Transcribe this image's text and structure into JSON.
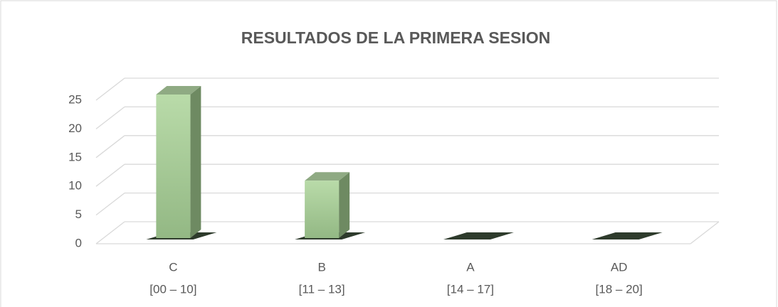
{
  "chart_data": {
    "type": "bar3d",
    "title": "RESULTADOS DE LA PRIMERA SESION",
    "categories": [
      {
        "grade": "C",
        "range": "[00 – 10]"
      },
      {
        "grade": "B",
        "range": "[11 – 13]"
      },
      {
        "grade": "A",
        "range": "[14 – 17]"
      },
      {
        "grade": "AD",
        "range": "[18 – 20]"
      }
    ],
    "values": [
      25,
      10,
      0,
      0
    ],
    "color": "#a9cf98",
    "ylim": [
      0,
      25
    ],
    "yticks": [
      0,
      5,
      10,
      15,
      20,
      25
    ],
    "grid": true
  }
}
